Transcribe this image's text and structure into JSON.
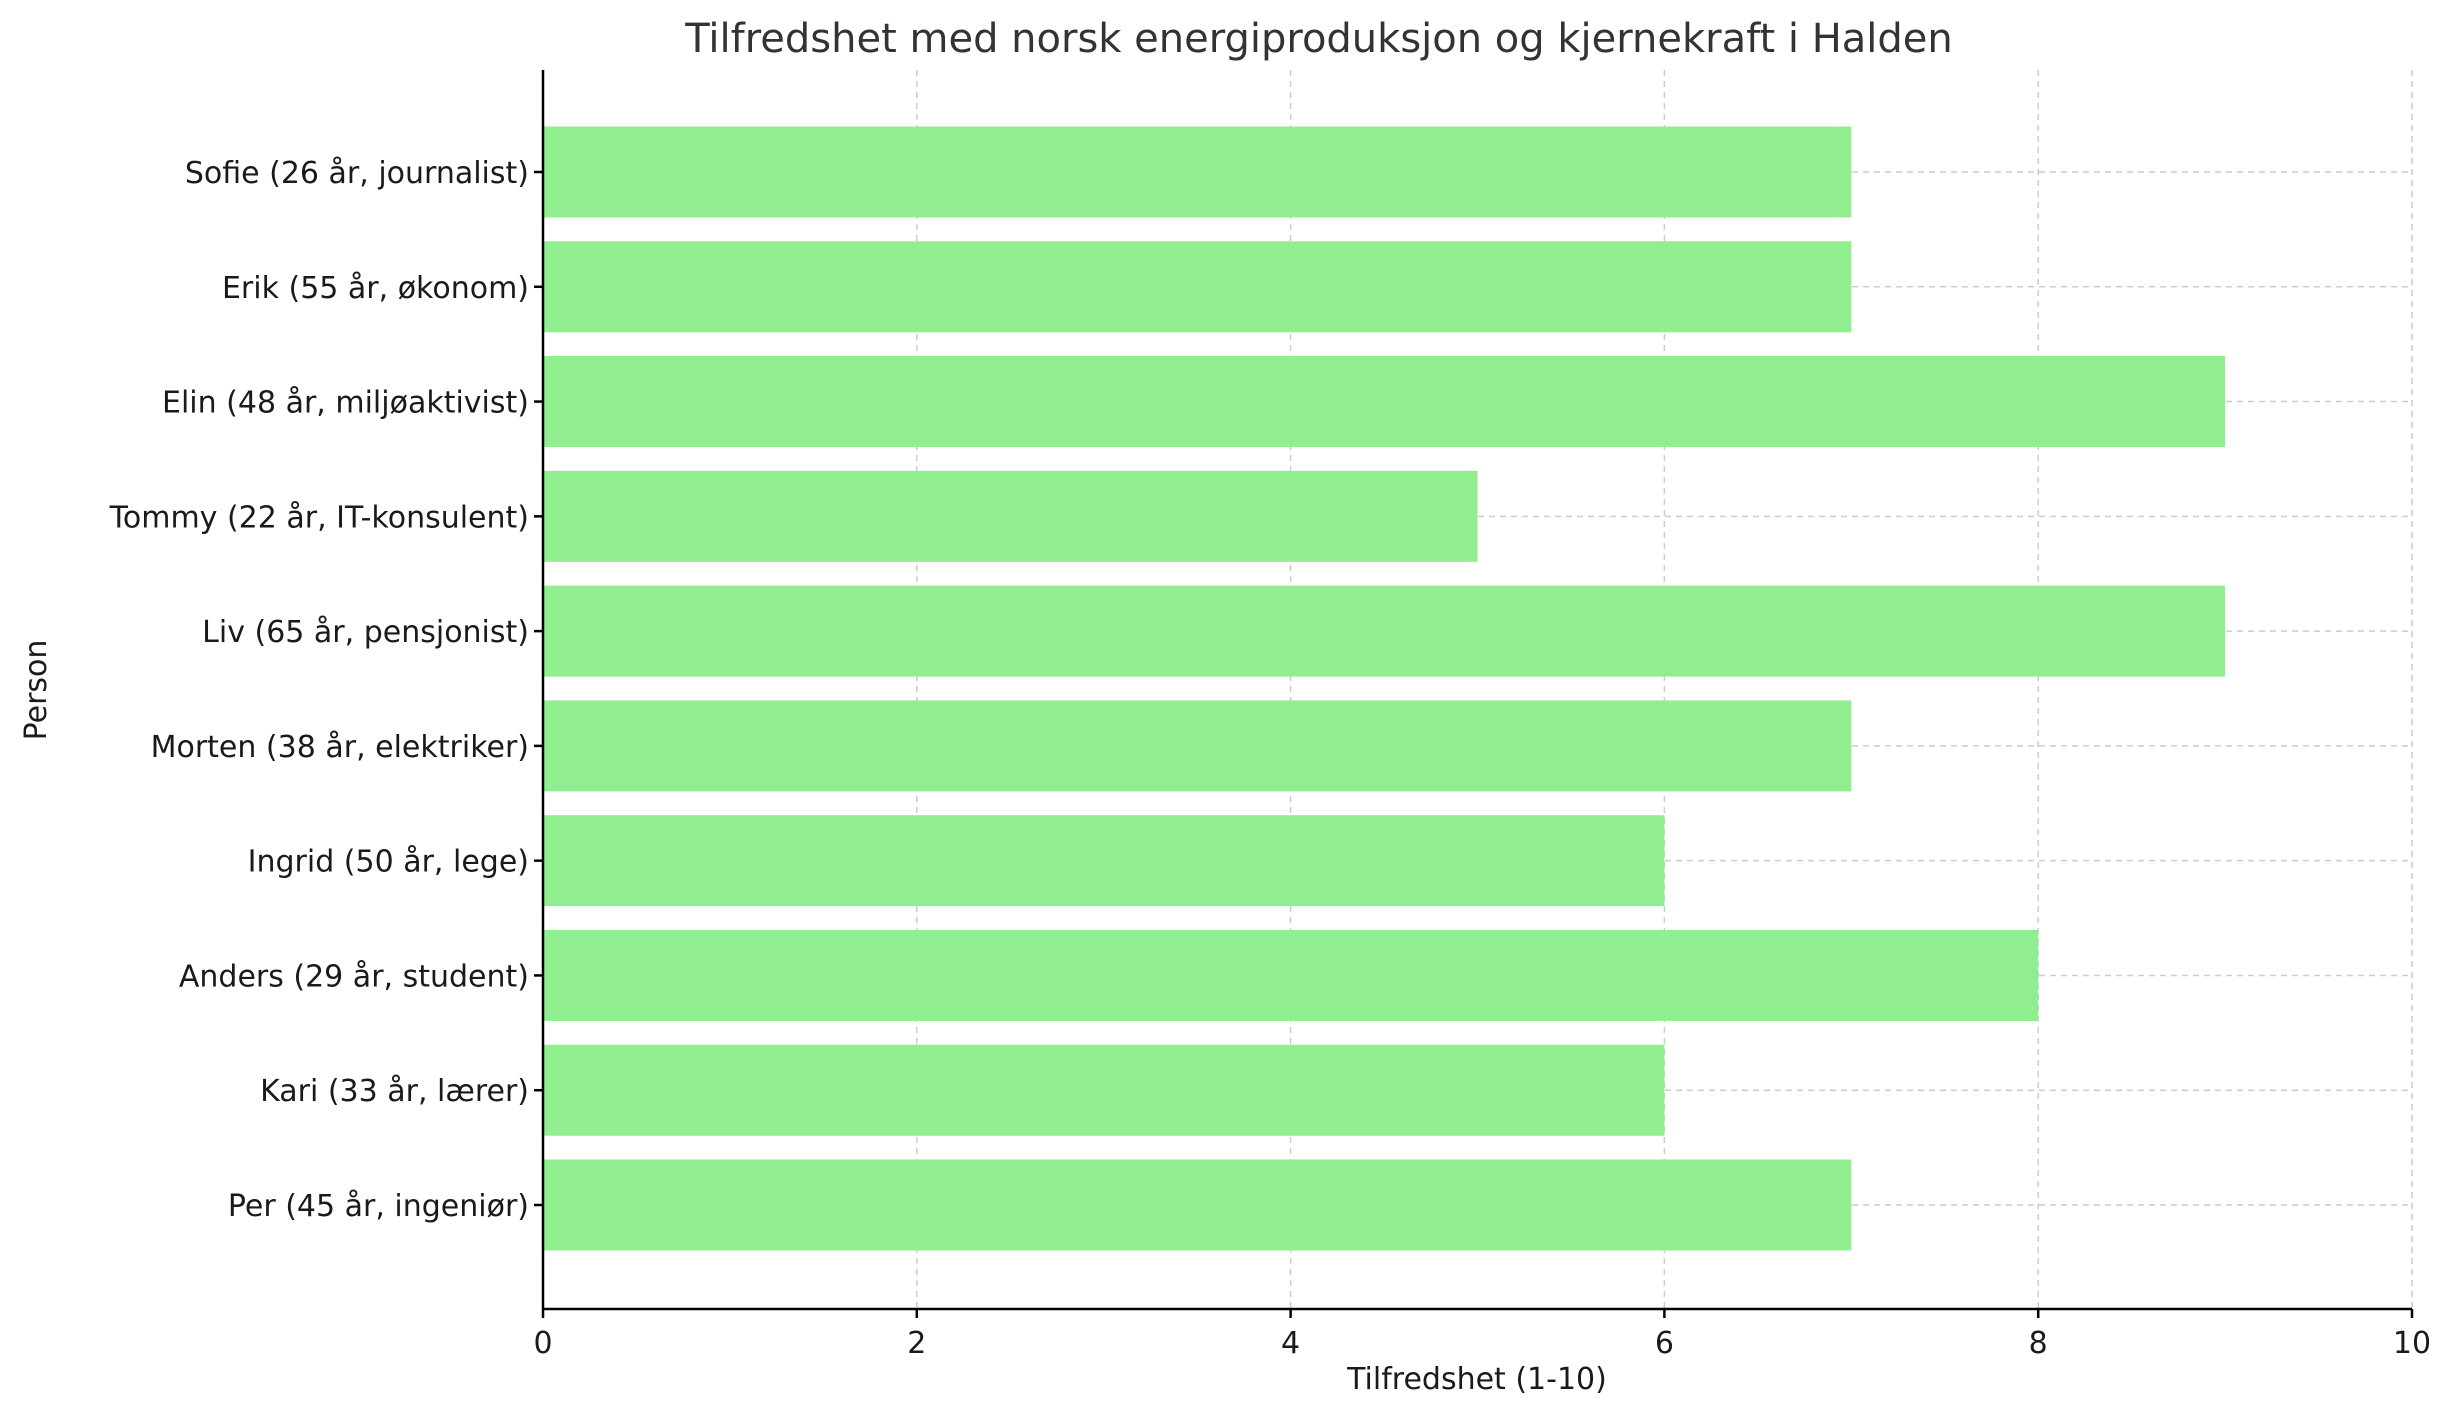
{
  "chart_data": {
    "type": "bar",
    "orientation": "horizontal",
    "title": "Tilfredshet med norsk energiproduksjon og kjernekraft i Halden",
    "xlabel": "Tilfredshet (1-10)",
    "ylabel": "Person",
    "xlim": [
      0,
      10
    ],
    "x_ticks": [
      0,
      2,
      4,
      6,
      8,
      10
    ],
    "grid": true,
    "bar_color": "#90ee90",
    "categories": [
      "Per (45 år, ingeniør)",
      "Kari (33 år, lærer)",
      "Anders (29 år, student)",
      "Ingrid (50 år, lege)",
      "Morten (38 år, elektriker)",
      "Liv (65 år, pensjonist)",
      "Tommy (22 år, IT-konsulent)",
      "Elin (48 år, miljøaktivist)",
      "Erik (55 år, økonom)",
      "Sofie (26 år, journalist)"
    ],
    "values": [
      7,
      6,
      8,
      6,
      7,
      9,
      5,
      9,
      7,
      7
    ]
  }
}
